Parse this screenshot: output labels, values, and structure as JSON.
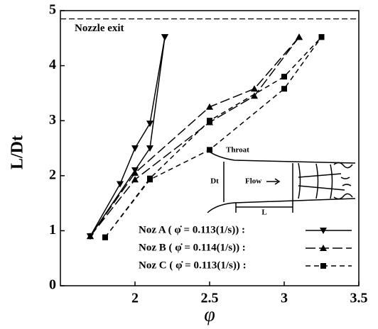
{
  "chart_data": {
    "type": "line",
    "xlabel": "φ",
    "ylabel": "L/Dt",
    "xlim": [
      1.5,
      3.5
    ],
    "ylim": [
      0,
      5
    ],
    "xticks": [
      2,
      2.5,
      3,
      3.5
    ],
    "yticks": [
      0,
      1,
      2,
      3,
      4,
      5
    ],
    "legend": "lower right",
    "reference_line": {
      "label": "Nozzle exit",
      "value": 4.85
    },
    "annotations": [
      "Throat",
      "Flow",
      "Dt",
      "L"
    ],
    "series": [
      {
        "name": "Noz A ( φ̇ = 0.113(1/s))  :",
        "color": "#000000",
        "dash": "solid",
        "marker": "down-triangle",
        "x": [
          1.7,
          1.9,
          2.0,
          2.1,
          2.2,
          null,
          1.7,
          2.0,
          2.1,
          2.2
        ],
        "values": [
          0.9,
          1.85,
          2.5,
          2.95,
          4.52,
          null,
          0.9,
          2.1,
          2.5,
          4.52
        ]
      },
      {
        "name": "Noz B ( φ̇ = 0.114(1/s))  :",
        "color": "#000000",
        "dash": "long-dash",
        "marker": "up-triangle",
        "x": [
          1.7,
          2.0,
          2.5,
          2.8,
          3.1,
          null,
          1.7,
          2.0,
          2.5,
          2.8,
          3.1
        ],
        "values": [
          0.9,
          2.05,
          3.25,
          3.58,
          4.52,
          null,
          0.9,
          1.93,
          2.97,
          3.45,
          4.52
        ]
      },
      {
        "name": "Noz C ( φ̇ = 0.113(1/s))  :",
        "color": "#000000",
        "dash": "dash",
        "marker": "square",
        "x": [
          1.8,
          2.1,
          2.5,
          3.0,
          3.25,
          null,
          1.8,
          2.1,
          2.5,
          3.0,
          3.25
        ],
        "values": [
          0.88,
          1.95,
          3.0,
          3.8,
          4.52,
          null,
          0.88,
          1.93,
          2.47,
          3.58,
          4.52
        ]
      }
    ]
  }
}
